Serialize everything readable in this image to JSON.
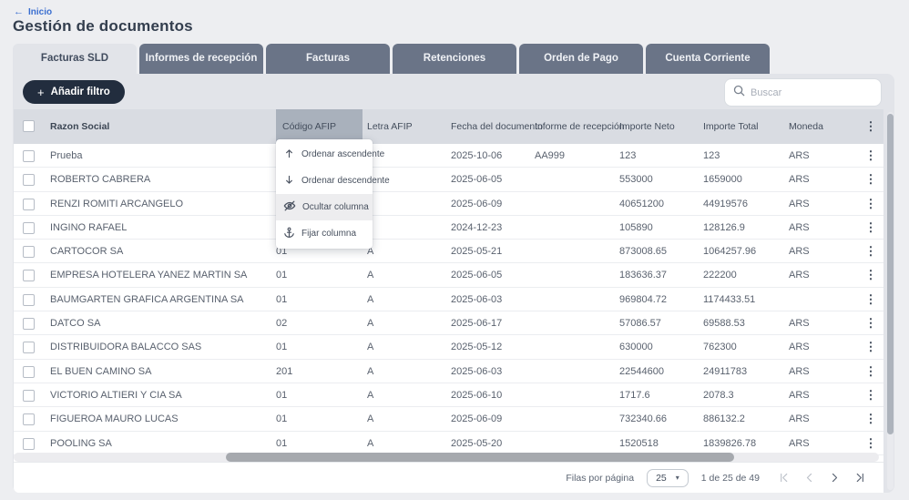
{
  "breadcrumb": {
    "icon": "arrow-left-icon",
    "label": "Inicio"
  },
  "page_title": "Gestión de documentos",
  "tabs": [
    {
      "label": "Facturas SLD",
      "active": true
    },
    {
      "label": "Informes de recepción",
      "active": false
    },
    {
      "label": "Facturas",
      "active": false
    },
    {
      "label": "Retenciones",
      "active": false
    },
    {
      "label": "Orden de Pago",
      "active": false
    },
    {
      "label": "Cuenta Corriente",
      "active": false
    }
  ],
  "toolbar": {
    "add_filter": {
      "icon": "plus-icon",
      "label": "Añadir filtro"
    },
    "search": {
      "icon": "search-icon",
      "placeholder": "Buscar"
    }
  },
  "table": {
    "columns": {
      "razon": "Razon Social",
      "codigo": "Código AFIP",
      "letra": "Letra AFIP",
      "fecha": "Fecha del documento",
      "informe": "Informe de recepción",
      "neto": "Importe Neto",
      "total": "Importe Total",
      "moneda": "Moneda"
    },
    "sorted_column": "Código AFIP",
    "rows": [
      {
        "razon": "Prueba",
        "codigo": "",
        "letra": "",
        "fecha": "2025-10-06",
        "informe": "AA999",
        "neto": "123",
        "total": "123",
        "moneda": "ARS"
      },
      {
        "razon": "ROBERTO CABRERA",
        "codigo": "",
        "letra": "",
        "fecha": "2025-06-05",
        "informe": "",
        "neto": "553000",
        "total": "1659000",
        "moneda": "ARS"
      },
      {
        "razon": "RENZI ROMITI ARCANGELO",
        "codigo": "",
        "letra": "",
        "fecha": "2025-06-09",
        "informe": "",
        "neto": "40651200",
        "total": "44919576",
        "moneda": "ARS"
      },
      {
        "razon": "INGINO RAFAEL",
        "codigo": "",
        "letra": "",
        "fecha": "2024-12-23",
        "informe": "",
        "neto": "105890",
        "total": "128126.9",
        "moneda": "ARS"
      },
      {
        "razon": "CARTOCOR SA",
        "codigo": "01",
        "letra": "A",
        "fecha": "2025-05-21",
        "informe": "",
        "neto": "873008.65",
        "total": "1064257.96",
        "moneda": "ARS"
      },
      {
        "razon": "EMPRESA HOTELERA YANEZ MARTIN SA",
        "codigo": "01",
        "letra": "A",
        "fecha": "2025-06-05",
        "informe": "",
        "neto": "183636.37",
        "total": "222200",
        "moneda": "ARS"
      },
      {
        "razon": "BAUMGARTEN GRAFICA ARGENTINA SA",
        "codigo": "01",
        "letra": "A",
        "fecha": "2025-06-03",
        "informe": "",
        "neto": "969804.72",
        "total": "1174433.51",
        "moneda": ""
      },
      {
        "razon": "DATCO SA",
        "codigo": "02",
        "letra": "A",
        "fecha": "2025-06-17",
        "informe": "",
        "neto": "57086.57",
        "total": "69588.53",
        "moneda": "ARS"
      },
      {
        "razon": "DISTRIBUIDORA BALACCO SAS",
        "codigo": "01",
        "letra": "A",
        "fecha": "2025-05-12",
        "informe": "",
        "neto": "630000",
        "total": "762300",
        "moneda": "ARS"
      },
      {
        "razon": "EL BUEN CAMINO SA",
        "codigo": "201",
        "letra": "A",
        "fecha": "2025-06-03",
        "informe": "",
        "neto": "22544600",
        "total": "24911783",
        "moneda": "ARS"
      },
      {
        "razon": "VICTORIO ALTIERI Y CIA SA",
        "codigo": "01",
        "letra": "A",
        "fecha": "2025-06-10",
        "informe": "",
        "neto": "1717.6",
        "total": "2078.3",
        "moneda": "ARS"
      },
      {
        "razon": "FIGUEROA MAURO LUCAS",
        "codigo": "01",
        "letra": "A",
        "fecha": "2025-06-09",
        "informe": "",
        "neto": "732340.66",
        "total": "886132.2",
        "moneda": "ARS"
      },
      {
        "razon": "POOLING SA",
        "codigo": "01",
        "letra": "A",
        "fecha": "2025-05-20",
        "informe": "",
        "neto": "1520518",
        "total": "1839826.78",
        "moneda": "ARS"
      }
    ]
  },
  "column_menu": {
    "items": [
      {
        "icon": "arrow-up-icon",
        "label": "Ordenar ascendente",
        "highlighted": false
      },
      {
        "icon": "arrow-down-icon",
        "label": "Ordenar descendente",
        "highlighted": false
      },
      {
        "icon": "eye-off-icon",
        "label": "Ocultar columna",
        "highlighted": true
      },
      {
        "icon": "anchor-icon",
        "label": "Fijar columna",
        "highlighted": false
      }
    ]
  },
  "footer": {
    "rows_per_page_label": "Filas por página",
    "rows_per_page_value": "25",
    "caret_icon": "chevron-down-icon",
    "range_text": "1 de 25 de 49",
    "pagination": [
      {
        "icon": "first-page-icon",
        "enabled": false
      },
      {
        "icon": "prev-page-icon",
        "enabled": false
      },
      {
        "icon": "next-page-icon",
        "enabled": true
      },
      {
        "icon": "last-page-icon",
        "enabled": true
      }
    ]
  },
  "colors": {
    "tab_inactive": "#6a7487",
    "panel": "#e2e4e9",
    "header_band": "#d9dce2",
    "sorted_column_highlight": "#a9b1bc",
    "primary_button": "#222d3e",
    "link_blue": "#3a6ed0"
  }
}
